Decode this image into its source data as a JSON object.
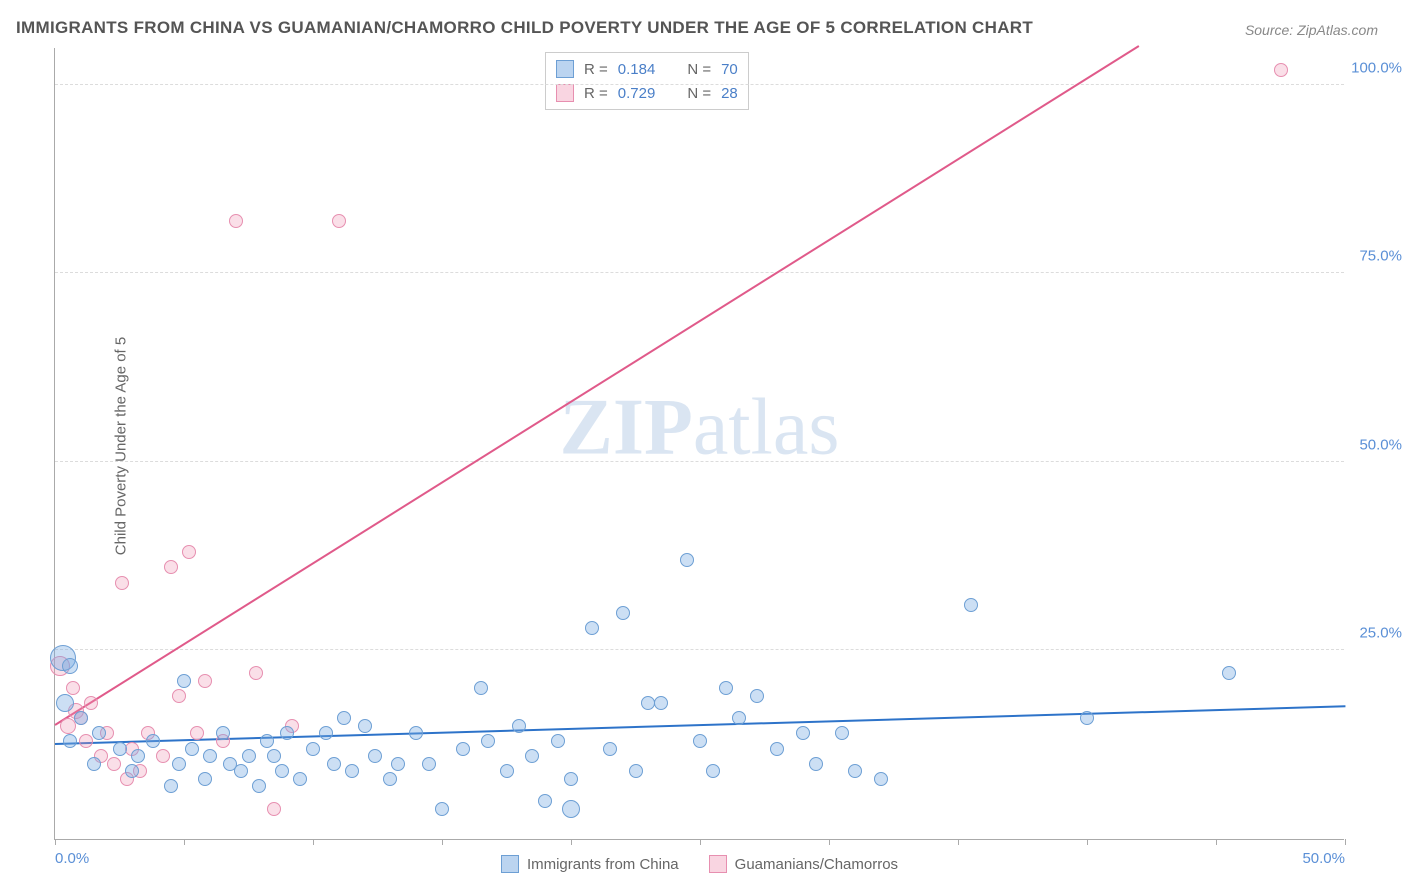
{
  "title": "IMMIGRANTS FROM CHINA VS GUAMANIAN/CHAMORRO CHILD POVERTY UNDER THE AGE OF 5 CORRELATION CHART",
  "source": "Source: ZipAtlas.com",
  "ylabel": "Child Poverty Under the Age of 5",
  "watermark_zip": "ZIP",
  "watermark_atlas": "atlas",
  "chart": {
    "type": "scatter",
    "xlim": [
      0,
      50
    ],
    "ylim": [
      0,
      105
    ],
    "background_color": "#ffffff",
    "grid_color": "#dcdcdc",
    "axis_color": "#aaaaaa",
    "yticks": [
      25,
      50,
      75,
      100
    ],
    "ytick_labels": [
      "25.0%",
      "50.0%",
      "75.0%",
      "100.0%"
    ],
    "xticks": [
      0,
      5,
      10,
      15,
      20,
      25,
      30,
      35,
      40,
      45,
      50
    ],
    "xtick_labels_shown": {
      "0": "0.0%",
      "50": "50.0%"
    },
    "label_color": "#5a8fd6",
    "label_fontsize": 15,
    "title_color": "#555555",
    "title_fontsize": 17,
    "default_point_radius": 7
  },
  "series": {
    "blue": {
      "name": "Immigrants from China",
      "color_fill": "rgba(120,170,225,0.38)",
      "color_stroke": "#6d9fd4",
      "R_label": "R  =",
      "R": "0.184",
      "N_label": "N  =",
      "N": "70",
      "regression": {
        "x1": 0,
        "y1": 12.5,
        "x2": 50,
        "y2": 17.5,
        "color": "#2d73c9",
        "width": 2
      },
      "points": [
        {
          "x": 0.3,
          "y": 24,
          "r": 13
        },
        {
          "x": 0.4,
          "y": 18,
          "r": 9
        },
        {
          "x": 0.6,
          "y": 13
        },
        {
          "x": 0.6,
          "y": 23,
          "r": 8
        },
        {
          "x": 1.0,
          "y": 16
        },
        {
          "x": 1.5,
          "y": 10
        },
        {
          "x": 1.7,
          "y": 14
        },
        {
          "x": 2.5,
          "y": 12
        },
        {
          "x": 3.0,
          "y": 9
        },
        {
          "x": 3.2,
          "y": 11
        },
        {
          "x": 3.8,
          "y": 13
        },
        {
          "x": 4.5,
          "y": 7
        },
        {
          "x": 4.8,
          "y": 10
        },
        {
          "x": 5.0,
          "y": 21
        },
        {
          "x": 5.3,
          "y": 12
        },
        {
          "x": 5.8,
          "y": 8
        },
        {
          "x": 6.0,
          "y": 11
        },
        {
          "x": 6.5,
          "y": 14
        },
        {
          "x": 6.8,
          "y": 10
        },
        {
          "x": 7.2,
          "y": 9
        },
        {
          "x": 7.5,
          "y": 11
        },
        {
          "x": 7.9,
          "y": 7
        },
        {
          "x": 8.2,
          "y": 13
        },
        {
          "x": 8.5,
          "y": 11
        },
        {
          "x": 8.8,
          "y": 9
        },
        {
          "x": 9.0,
          "y": 14
        },
        {
          "x": 9.5,
          "y": 8
        },
        {
          "x": 10.0,
          "y": 12
        },
        {
          "x": 10.5,
          "y": 14
        },
        {
          "x": 10.8,
          "y": 10
        },
        {
          "x": 11.2,
          "y": 16
        },
        {
          "x": 11.5,
          "y": 9
        },
        {
          "x": 12.0,
          "y": 15
        },
        {
          "x": 12.4,
          "y": 11
        },
        {
          "x": 13.0,
          "y": 8
        },
        {
          "x": 13.3,
          "y": 10
        },
        {
          "x": 14.0,
          "y": 14
        },
        {
          "x": 14.5,
          "y": 10
        },
        {
          "x": 15.0,
          "y": 4
        },
        {
          "x": 15.8,
          "y": 12
        },
        {
          "x": 16.5,
          "y": 20
        },
        {
          "x": 16.8,
          "y": 13
        },
        {
          "x": 17.5,
          "y": 9
        },
        {
          "x": 18.0,
          "y": 15
        },
        {
          "x": 18.5,
          "y": 11
        },
        {
          "x": 19.0,
          "y": 5
        },
        {
          "x": 19.5,
          "y": 13
        },
        {
          "x": 20.0,
          "y": 8
        },
        {
          "x": 20.0,
          "y": 4,
          "r": 9
        },
        {
          "x": 20.8,
          "y": 28
        },
        {
          "x": 21.5,
          "y": 12
        },
        {
          "x": 22.0,
          "y": 30
        },
        {
          "x": 22.5,
          "y": 9
        },
        {
          "x": 23.0,
          "y": 18
        },
        {
          "x": 23.5,
          "y": 18
        },
        {
          "x": 24.5,
          "y": 37
        },
        {
          "x": 25.0,
          "y": 13
        },
        {
          "x": 25.5,
          "y": 9
        },
        {
          "x": 26.0,
          "y": 20
        },
        {
          "x": 26.5,
          "y": 16
        },
        {
          "x": 27.2,
          "y": 19
        },
        {
          "x": 28.0,
          "y": 12
        },
        {
          "x": 29.0,
          "y": 14
        },
        {
          "x": 29.5,
          "y": 10
        },
        {
          "x": 30.5,
          "y": 14
        },
        {
          "x": 31.0,
          "y": 9
        },
        {
          "x": 32.0,
          "y": 8
        },
        {
          "x": 35.5,
          "y": 31
        },
        {
          "x": 40.0,
          "y": 16
        },
        {
          "x": 45.5,
          "y": 22
        }
      ]
    },
    "pink": {
      "name": "Guamanians/Chamorros",
      "color_fill": "rgba(240,150,180,0.30)",
      "color_stroke": "#e78fb0",
      "R_label": "R  =",
      "R": "0.729",
      "N_label": "N  =",
      "N": "28",
      "regression": {
        "x1": 0,
        "y1": 15,
        "x2": 42,
        "y2": 105,
        "color": "#e05a8a",
        "width": 2
      },
      "points": [
        {
          "x": 0.2,
          "y": 23,
          "r": 10
        },
        {
          "x": 0.5,
          "y": 15,
          "r": 8
        },
        {
          "x": 0.7,
          "y": 20
        },
        {
          "x": 0.8,
          "y": 17,
          "r": 8
        },
        {
          "x": 1.0,
          "y": 16
        },
        {
          "x": 1.2,
          "y": 13
        },
        {
          "x": 1.4,
          "y": 18
        },
        {
          "x": 1.8,
          "y": 11
        },
        {
          "x": 2.0,
          "y": 14
        },
        {
          "x": 2.3,
          "y": 10
        },
        {
          "x": 2.6,
          "y": 34
        },
        {
          "x": 2.8,
          "y": 8
        },
        {
          "x": 3.0,
          "y": 12
        },
        {
          "x": 3.3,
          "y": 9
        },
        {
          "x": 3.6,
          "y": 14
        },
        {
          "x": 4.2,
          "y": 11
        },
        {
          "x": 4.5,
          "y": 36
        },
        {
          "x": 4.8,
          "y": 19
        },
        {
          "x": 5.2,
          "y": 38
        },
        {
          "x": 5.5,
          "y": 14
        },
        {
          "x": 5.8,
          "y": 21
        },
        {
          "x": 6.5,
          "y": 13
        },
        {
          "x": 7.0,
          "y": 82
        },
        {
          "x": 7.8,
          "y": 22
        },
        {
          "x": 8.5,
          "y": 4
        },
        {
          "x": 9.2,
          "y": 15
        },
        {
          "x": 11.0,
          "y": 82
        },
        {
          "x": 47.5,
          "y": 102
        }
      ]
    }
  }
}
